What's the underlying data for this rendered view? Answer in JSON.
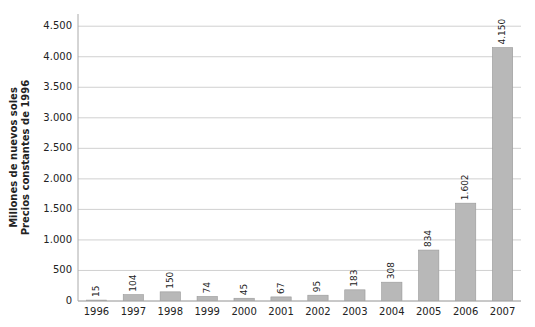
{
  "chart_data": {
    "type": "bar",
    "ylabel": [
      "Millones de nuevos soles",
      "Precios constantes de 1996"
    ],
    "categories": [
      "1996",
      "1997",
      "1998",
      "1999",
      "2000",
      "2001",
      "2002",
      "2003",
      "2004",
      "2005",
      "2006",
      "2007"
    ],
    "values": [
      15,
      104,
      150,
      74,
      45,
      67,
      95,
      183,
      308,
      834,
      1602,
      4150
    ],
    "value_labels": [
      "15",
      "104",
      "150",
      "74",
      "45",
      "67",
      "95",
      "183",
      "308",
      "834",
      "1.602",
      "4.150"
    ],
    "data_labels": true,
    "color": "#b8b8b8",
    "ylim": [
      0,
      4700
    ],
    "yticks": [
      0,
      500,
      {
        "value": 1000,
        "label": "1.000"
      },
      {
        "value": 1500,
        "label": "1.500"
      },
      {
        "value": 2000,
        "label": "2.000"
      },
      {
        "value": 2500,
        "label": "2.500"
      },
      {
        "value": 3000,
        "label": "3.000"
      },
      {
        "value": 3500,
        "label": "3.500"
      },
      {
        "value": 4000,
        "label": "4.000"
      },
      {
        "value": 4500,
        "label": "4.500"
      }
    ],
    "grid": true
  }
}
